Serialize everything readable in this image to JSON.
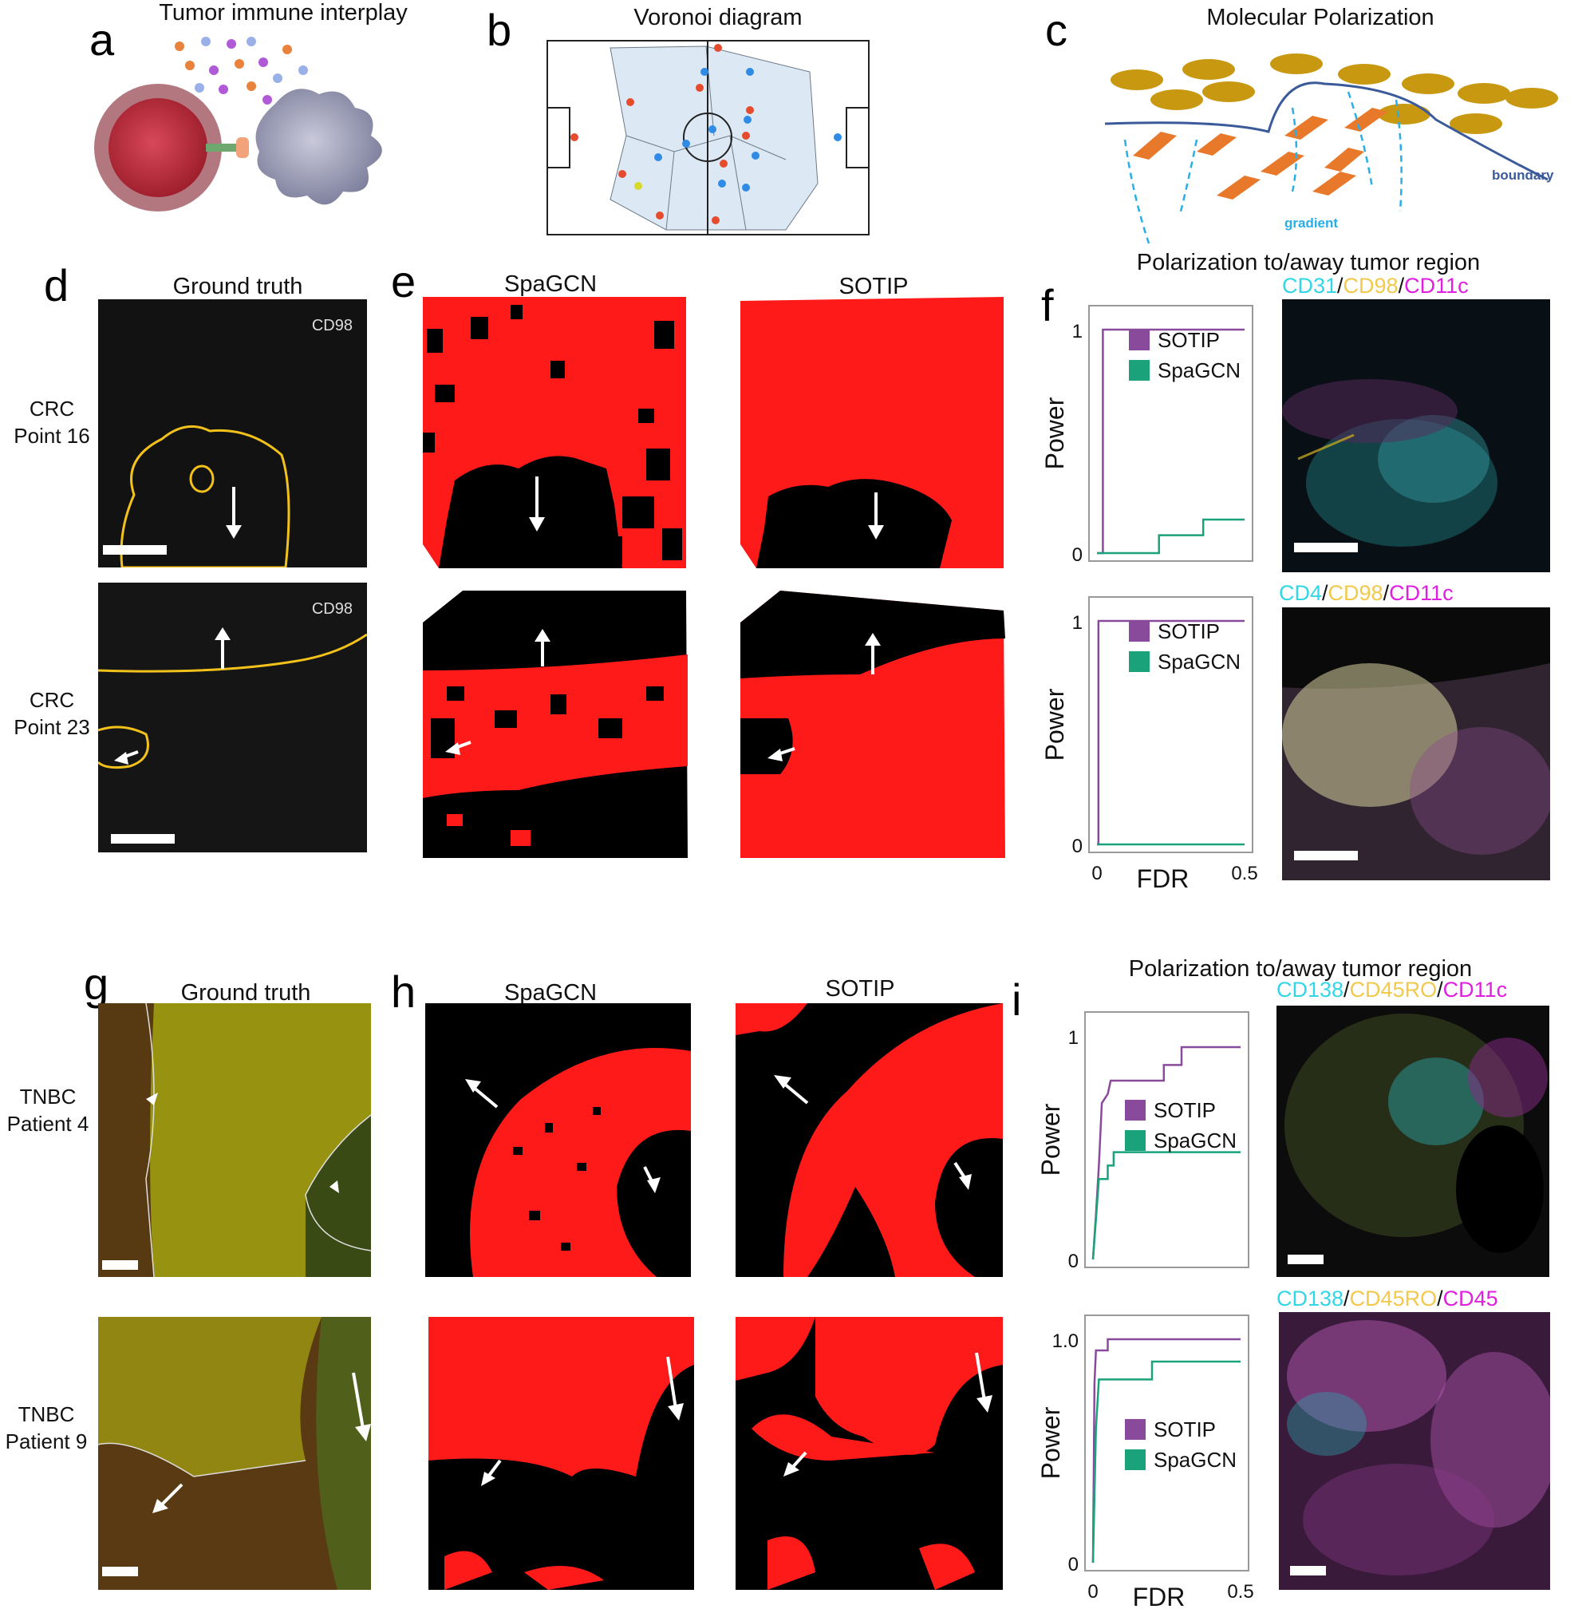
{
  "panels": {
    "a": {
      "letter": "a",
      "title": "Tumor immune interplay"
    },
    "b": {
      "letter": "b",
      "title": "Voronoi diagram"
    },
    "c": {
      "letter": "c",
      "title": "Molecular Polarization",
      "boundary_label": "boundary",
      "gradient_label": "gradient"
    },
    "d": {
      "letter": "d",
      "title": "Ground truth",
      "marker_label": "CD98",
      "rows": [
        [
          "CRC",
          "Point 16"
        ],
        [
          "CRC",
          "Point 23"
        ]
      ]
    },
    "e": {
      "letter": "e",
      "col1": "SpaGCN",
      "col2": "SOTIP"
    },
    "f": {
      "letter": "f",
      "header": "Polarization to/away tumor region"
    },
    "g": {
      "letter": "g",
      "title": "Ground truth",
      "rows": [
        [
          "TNBC",
          "Patient 4"
        ],
        [
          "TNBC",
          "Patient 9"
        ]
      ]
    },
    "h": {
      "letter": "h",
      "col1": "SpaGCN",
      "col2": "SOTIP"
    },
    "i": {
      "letter": "i",
      "header": "Polarization to/away tumor region"
    }
  },
  "marker_labels": {
    "f_top": [
      {
        "text": "CD31",
        "color": "#33d6e6"
      },
      {
        "text": "/",
        "color": "#111111"
      },
      {
        "text": "CD98",
        "color": "#f2c94c"
      },
      {
        "text": "/",
        "color": "#111111"
      },
      {
        "text": "CD11c",
        "color": "#e020e0"
      }
    ],
    "f_bottom": [
      {
        "text": "CD4",
        "color": "#33d6e6"
      },
      {
        "text": "/",
        "color": "#111111"
      },
      {
        "text": "CD98",
        "color": "#f2c94c"
      },
      {
        "text": "/",
        "color": "#111111"
      },
      {
        "text": "CD11c",
        "color": "#e020e0"
      }
    ],
    "i_top": [
      {
        "text": "CD138",
        "color": "#33d6e6"
      },
      {
        "text": "/",
        "color": "#111111"
      },
      {
        "text": "CD45RO",
        "color": "#f2c94c"
      },
      {
        "text": "/",
        "color": "#111111"
      },
      {
        "text": "CD11c",
        "color": "#e020e0"
      }
    ],
    "i_bottom": [
      {
        "text": "CD138",
        "color": "#33d6e6"
      },
      {
        "text": "/",
        "color": "#111111"
      },
      {
        "text": "CD45RO",
        "color": "#f2c94c"
      },
      {
        "text": "/",
        "color": "#111111"
      },
      {
        "text": "CD45",
        "color": "#e020e0"
      }
    ]
  },
  "colors": {
    "sotip": "#8a4a9c",
    "spagcn": "#1aa37a",
    "region": "#ff1a1a",
    "background": "#000000",
    "contour": "#f2c21b"
  },
  "chart_data": [
    {
      "type": "line",
      "panel": "f-top",
      "ylabel": "Power",
      "yticks": [
        "0",
        "1"
      ],
      "xlim": [
        0,
        0.5
      ],
      "ylim": [
        0,
        1
      ],
      "series": [
        {
          "name": "SOTIP",
          "points": [
            [
              0,
              0
            ],
            [
              0.02,
              0
            ],
            [
              0.02,
              1
            ],
            [
              0.5,
              1
            ]
          ]
        },
        {
          "name": "SpaGCN",
          "points": [
            [
              0,
              0
            ],
            [
              0.21,
              0
            ],
            [
              0.21,
              0.08
            ],
            [
              0.36,
              0.08
            ],
            [
              0.36,
              0.15
            ],
            [
              0.5,
              0.15
            ]
          ]
        }
      ]
    },
    {
      "type": "line",
      "panel": "f-bottom",
      "ylabel": "Power",
      "xlabel": "FDR",
      "yticks": [
        "0",
        "1"
      ],
      "xticks": [
        "0",
        "0.5"
      ],
      "xlim": [
        0,
        0.5
      ],
      "ylim": [
        0,
        1
      ],
      "series": [
        {
          "name": "SOTIP",
          "points": [
            [
              0,
              0
            ],
            [
              0.005,
              0
            ],
            [
              0.005,
              1
            ],
            [
              0.5,
              1
            ]
          ]
        },
        {
          "name": "SpaGCN",
          "points": [
            [
              0,
              0
            ],
            [
              0.5,
              0
            ]
          ]
        }
      ]
    },
    {
      "type": "line",
      "panel": "i-top",
      "ylabel": "Power",
      "yticks": [
        "0",
        "1"
      ],
      "xlim": [
        0,
        0.5
      ],
      "ylim": [
        0,
        1
      ],
      "series": [
        {
          "name": "SOTIP",
          "points": [
            [
              0,
              0
            ],
            [
              0.01,
              0.2
            ],
            [
              0.02,
              0.42
            ],
            [
              0.03,
              0.7
            ],
            [
              0.05,
              0.74
            ],
            [
              0.06,
              0.8
            ],
            [
              0.24,
              0.8
            ],
            [
              0.24,
              0.87
            ],
            [
              0.3,
              0.87
            ],
            [
              0.3,
              0.95
            ],
            [
              0.5,
              0.95
            ]
          ]
        },
        {
          "name": "SpaGCN",
          "points": [
            [
              0,
              0
            ],
            [
              0.02,
              0.36
            ],
            [
              0.05,
              0.36
            ],
            [
              0.05,
              0.42
            ],
            [
              0.07,
              0.42
            ],
            [
              0.07,
              0.48
            ],
            [
              0.5,
              0.48
            ]
          ]
        }
      ]
    },
    {
      "type": "line",
      "panel": "i-bottom",
      "ylabel": "Power",
      "xlabel": "FDR",
      "yticks": [
        "0",
        "1.0"
      ],
      "xticks": [
        "0",
        "0.5"
      ],
      "xlim": [
        0,
        0.5
      ],
      "ylim": [
        0,
        1
      ],
      "series": [
        {
          "name": "SOTIP",
          "points": [
            [
              0,
              0
            ],
            [
              0.005,
              0.8
            ],
            [
              0.01,
              0.95
            ],
            [
              0.05,
              0.95
            ],
            [
              0.05,
              1
            ],
            [
              0.5,
              1
            ]
          ]
        },
        {
          "name": "SpaGCN",
          "points": [
            [
              0,
              0
            ],
            [
              0.01,
              0.6
            ],
            [
              0.02,
              0.82
            ],
            [
              0.2,
              0.82
            ],
            [
              0.2,
              0.9
            ],
            [
              0.5,
              0.9
            ]
          ]
        }
      ]
    }
  ]
}
